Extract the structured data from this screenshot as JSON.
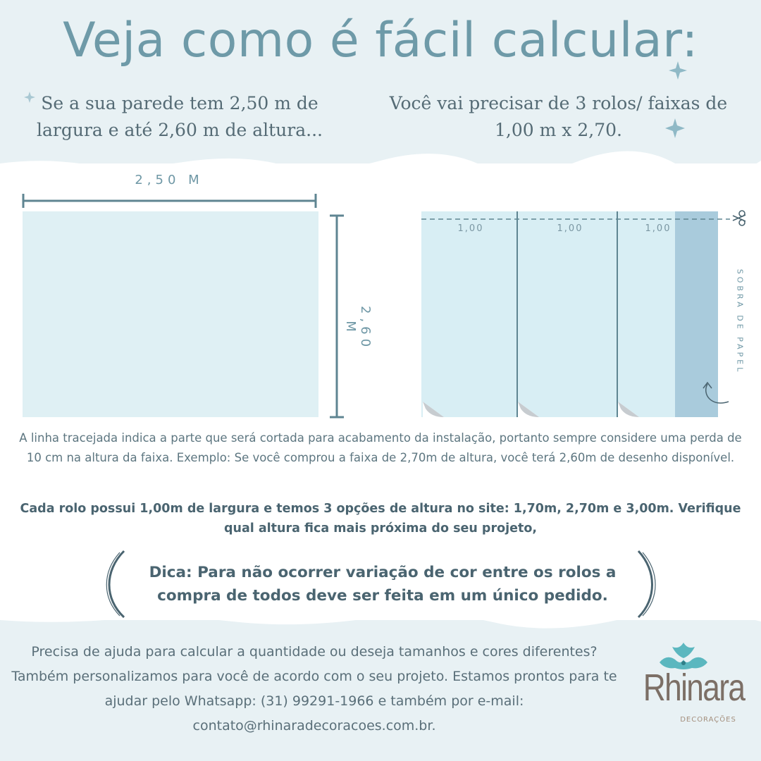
{
  "header": {
    "title": "Veja como é fácil calcular:",
    "sub_left": "Se a sua parede tem 2,50 m  de largura e até 2,60 m de altura...",
    "sub_right": "Você vai precisar de 3 rolos/ faixas de 1,00 m  x  2,70."
  },
  "diagram": {
    "wall_width_label": "2,50 M",
    "wall_height_label": "2,60 M",
    "strip_labels": [
      "1,00",
      "1,00",
      "1,00"
    ],
    "leftover_label": "SOBRA DE PAPEL"
  },
  "notes": {
    "cut_line_note": "A linha tracejada indica a parte que será cortada para acabamento da instalação, portanto sempre considere uma perda de 10 cm na altura da faixa. Exemplo: Se você comprou a faixa de 2,70m de altura, você terá 2,60m de desenho disponível.",
    "roll_info": "Cada rolo possui 1,00m de largura e temos 3 opções de altura no site: 1,70m, 2,70m e 3,00m. Verifique qual altura fica mais próxima do seu projeto,",
    "tip": "Dica: Para não ocorrer variação de cor entre os rolos a compra de todos deve ser feita em um único pedido."
  },
  "footer": {
    "help_text": "Precisa de ajuda para calcular a quantidade ou deseja tamanhos e cores diferentes? Também personalizamos para você de acordo com o seu projeto. Estamos prontos para te ajudar pelo Whatsapp: (31) 99291-1966 e também por e-mail: contato@rhinaradecoracoes.com.br."
  },
  "brand": {
    "name": "Rhinara",
    "tagline": "DECORAÇÕES"
  },
  "colors": {
    "band": "#e8f1f4",
    "title": "#6e9aa8",
    "wall": "#dff0f4",
    "leftover": "#a9cbdc",
    "dark_line": "#5f8592",
    "logo_teal": "#5bb7bf"
  },
  "icons": [
    "sparkle-icon",
    "scissors-icon",
    "curved-arrow-icon",
    "peel-corner-icon",
    "rhinara-logo-ornament"
  ]
}
